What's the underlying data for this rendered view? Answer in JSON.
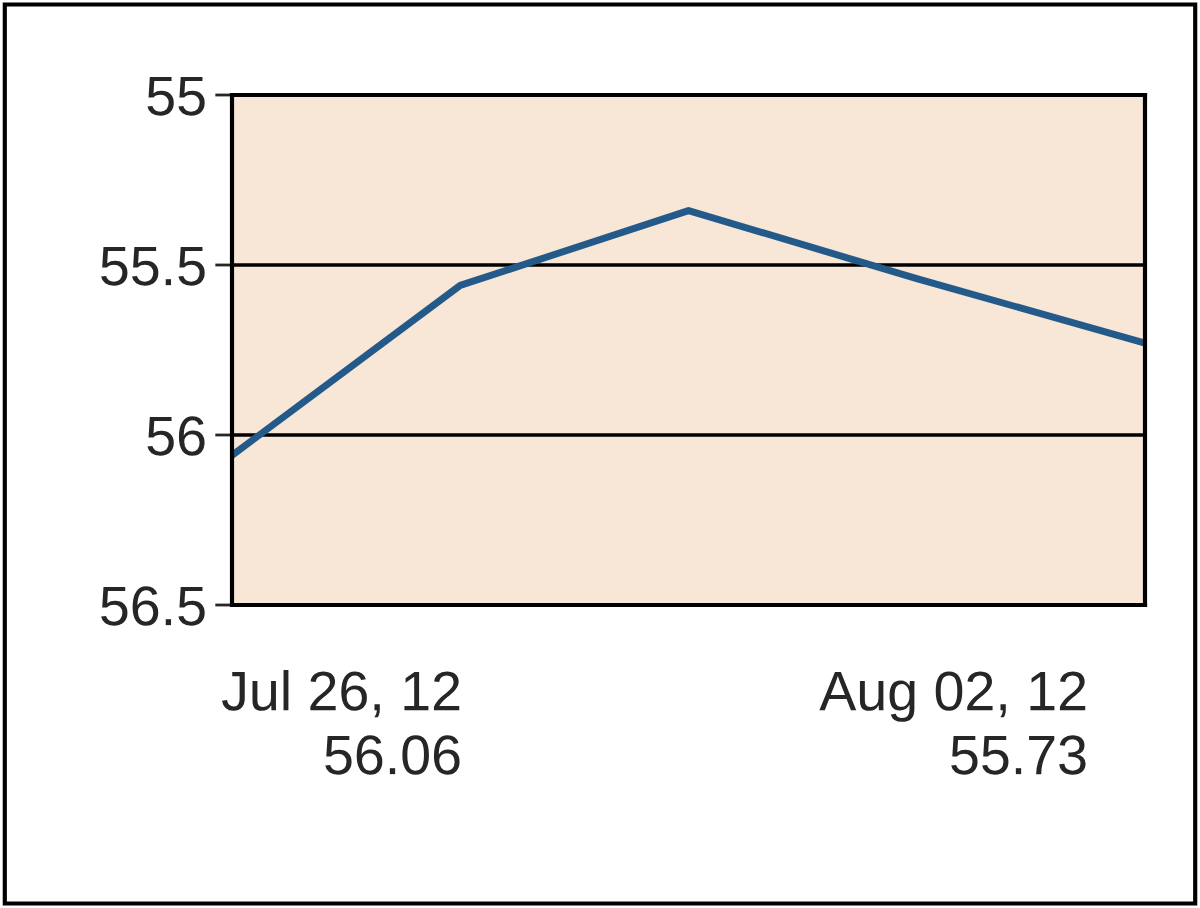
{
  "chart_data": {
    "type": "line",
    "categories": [
      null,
      null,
      null,
      null,
      null
    ],
    "series": [
      {
        "color": "#245a8a",
        "values": [
          56.06,
          55.56,
          55.34,
          55.54,
          55.73
        ]
      }
    ],
    "ylim": [
      56.5,
      55
    ],
    "yticks": [
      55,
      55.5,
      56,
      56.5
    ],
    "grid": "y",
    "tick_labels": "y",
    "marker": "none",
    "line_style": "solid",
    "annotations": [
      "Jul 26, 12\n56.06",
      "Aug 02, 12\n55.73"
    ]
  }
}
